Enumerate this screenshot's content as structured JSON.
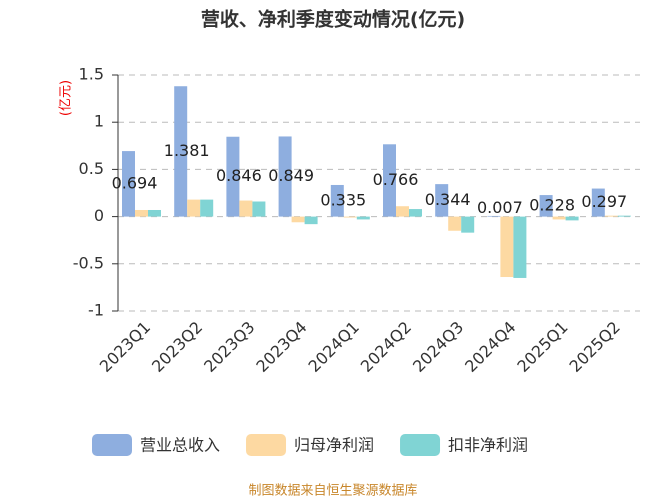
{
  "chart_data": {
    "type": "bar",
    "title": "营收、净利季度变动情况(亿元)",
    "y_label": "(亿元)",
    "categories": [
      "2023Q1",
      "2023Q2",
      "2023Q3",
      "2023Q4",
      "2024Q1",
      "2024Q2",
      "2024Q3",
      "2024Q4",
      "2025Q1",
      "2025Q2"
    ],
    "series": [
      {
        "name": "营业总收入",
        "color": "#8eaedf",
        "values": [
          0.694,
          1.381,
          0.846,
          0.849,
          0.335,
          0.766,
          0.344,
          0.007,
          0.228,
          0.297
        ],
        "show_labels": true
      },
      {
        "name": "归母净利润",
        "color": "#fdd9a2",
        "values": [
          0.07,
          0.18,
          0.17,
          -0.06,
          -0.01,
          0.11,
          -0.15,
          -0.64,
          -0.03,
          0.01
        ]
      },
      {
        "name": "扣非净利润",
        "color": "#80d4d4",
        "values": [
          0.07,
          0.18,
          0.16,
          -0.08,
          -0.03,
          0.08,
          -0.17,
          -0.65,
          -0.04,
          0.01
        ]
      }
    ],
    "ylim": [
      -1,
      1.5
    ],
    "yticks": [
      -1,
      -0.5,
      0,
      0.5,
      1,
      1.5
    ],
    "grid": true,
    "source": "制图数据来自恒生聚源数据库"
  }
}
